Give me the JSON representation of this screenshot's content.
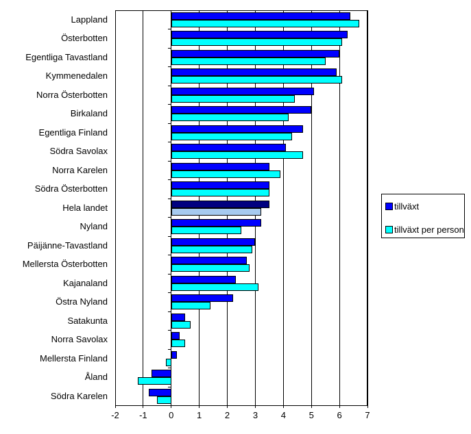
{
  "chart_data": {
    "type": "bar",
    "orientation": "horizontal",
    "categories": [
      "Lappland",
      "Österbotten",
      "Egentliga Tavastland",
      "Kymmenedalen",
      "Norra Österbotten",
      "Birkaland",
      "Egentliga Finland",
      "Södra Savolax",
      "Norra Karelen",
      "Södra Österbotten",
      "Hela landet",
      "Nyland",
      "Päijänne-Tavastland",
      "Mellersta Österbotten",
      "Kajanaland",
      "Östra Nyland",
      "Satakunta",
      "Norra Savolax",
      "Mellersta Finland",
      "Åland",
      "Södra Karelen"
    ],
    "series": [
      {
        "name": "tillväxt",
        "color": "#0000FF",
        "values": [
          6.4,
          6.3,
          6.0,
          5.9,
          5.1,
          5.0,
          4.7,
          4.1,
          3.5,
          3.5,
          3.5,
          3.2,
          3.0,
          2.7,
          2.3,
          2.2,
          0.5,
          0.3,
          0.2,
          -0.7,
          -0.8
        ]
      },
      {
        "name": "tillväxt per person",
        "color": "#00FFFF",
        "values": [
          6.7,
          6.1,
          5.5,
          6.1,
          4.4,
          4.2,
          4.3,
          4.7,
          3.9,
          3.5,
          3.2,
          2.5,
          2.9,
          2.8,
          3.1,
          1.4,
          0.7,
          0.5,
          -0.2,
          -1.2,
          -0.5
        ]
      }
    ],
    "highlight": {
      "category": "Hela landet",
      "colors": [
        "#000080",
        "#A6CAF0"
      ]
    },
    "xlim": [
      -2,
      7
    ],
    "x_ticks": [
      -2,
      -1,
      0,
      1,
      2,
      3,
      4,
      5,
      6,
      7
    ],
    "grid": "vertical-major",
    "legend_position": "right",
    "bar_border_color": "#000000",
    "background": "#FFFFFF"
  }
}
